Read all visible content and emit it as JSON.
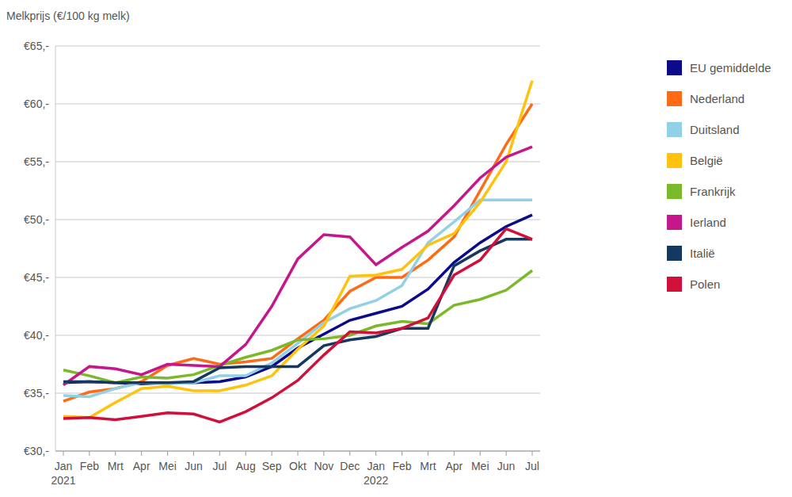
{
  "chart_data": {
    "type": "line",
    "y_label": "Melkprijs (€/100 kg melk)",
    "categories": [
      "Jan 2021",
      "Feb",
      "Mrt",
      "Apr",
      "Mei",
      "Jun",
      "Jul",
      "Aug",
      "Sep",
      "Okt",
      "Nov",
      "Dec",
      "Jan 2022",
      "Feb",
      "Mrt",
      "Apr",
      "Mei",
      "Jun",
      "Jul"
    ],
    "series": [
      {
        "name": "EU gemiddelde",
        "color": "#0a0a8a",
        "values": [
          35.9,
          36.0,
          35.9,
          35.8,
          35.9,
          35.9,
          36.0,
          36.4,
          37.3,
          38.9,
          40.1,
          41.3,
          41.9,
          42.5,
          44.0,
          46.3,
          48.0,
          49.4,
          50.4
        ]
      },
      {
        "name": "Nederland",
        "color": "#ff6b14",
        "values": [
          34.3,
          35.1,
          35.4,
          36.0,
          37.4,
          38.0,
          37.5,
          37.7,
          38.0,
          39.7,
          41.3,
          43.8,
          45.0,
          45.0,
          46.5,
          48.5,
          52.5,
          56.5,
          60.0
        ]
      },
      {
        "name": "Duitsland",
        "color": "#92d0e6",
        "values": [
          34.8,
          34.7,
          35.4,
          35.9,
          35.8,
          35.9,
          36.5,
          36.5,
          37.6,
          39.3,
          41.1,
          42.3,
          43.0,
          44.3,
          48.0,
          49.8,
          51.7,
          51.7,
          51.7
        ]
      },
      {
        "name": "België",
        "color": "#ffc20e",
        "values": [
          33.0,
          32.9,
          34.2,
          35.4,
          35.6,
          35.2,
          35.2,
          35.7,
          36.5,
          38.8,
          40.8,
          45.1,
          45.2,
          45.7,
          47.8,
          48.8,
          51.5,
          55.0,
          62.0
        ]
      },
      {
        "name": "Frankrijk",
        "color": "#7ab929",
        "values": [
          37.0,
          36.5,
          35.9,
          36.4,
          36.3,
          36.6,
          37.4,
          38.1,
          38.7,
          39.6,
          39.7,
          40.0,
          40.8,
          41.2,
          41.0,
          42.6,
          43.1,
          43.9,
          45.6
        ]
      },
      {
        "name": "Ierland",
        "color": "#c5168c",
        "values": [
          35.7,
          37.3,
          37.1,
          36.6,
          37.5,
          37.4,
          37.3,
          39.2,
          42.5,
          46.6,
          48.7,
          48.5,
          46.1,
          47.6,
          49.0,
          51.2,
          53.6,
          55.4,
          56.3
        ]
      },
      {
        "name": "Italië",
        "color": "#16375f",
        "values": [
          36.0,
          36.0,
          35.9,
          35.9,
          35.9,
          36.0,
          37.2,
          37.3,
          37.3,
          37.3,
          39.1,
          39.6,
          39.9,
          40.6,
          40.6,
          46.0,
          47.3,
          48.3,
          48.3
        ]
      },
      {
        "name": "Polen",
        "color": "#d0103a",
        "values": [
          32.8,
          32.9,
          32.7,
          33.0,
          33.3,
          33.2,
          32.5,
          33.4,
          34.6,
          36.1,
          38.3,
          40.3,
          40.2,
          40.6,
          41.5,
          45.2,
          46.5,
          49.2,
          48.3
        ]
      }
    ],
    "ylim": [
      30,
      65
    ],
    "yticks": [
      {
        "value": 30,
        "label": "€30,-"
      },
      {
        "value": 35,
        "label": "€35,-"
      },
      {
        "value": 40,
        "label": "€40,-"
      },
      {
        "value": 45,
        "label": "€45,-"
      },
      {
        "value": 50,
        "label": "€50,-"
      },
      {
        "value": 55,
        "label": "€55,-"
      },
      {
        "value": 60,
        "label": "€60,-"
      },
      {
        "value": 65,
        "label": "€65,-"
      }
    ],
    "grid": true,
    "legend": "right"
  }
}
